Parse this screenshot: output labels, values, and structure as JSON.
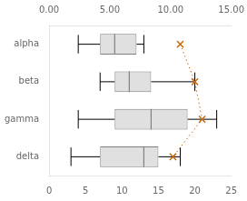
{
  "chart_data": {
    "type": "box",
    "orientation": "horizontal",
    "categories": [
      "alpha",
      "beta",
      "gamma",
      "delta"
    ],
    "boxes": [
      {
        "whisker_low": 4,
        "q1": 7,
        "median": 9,
        "q3": 12,
        "whisker_high": 13,
        "mean": 18
      },
      {
        "whisker_low": 7,
        "q1": 9,
        "median": 11,
        "q3": 14,
        "whisker_high": 20,
        "mean": 20
      },
      {
        "whisker_low": 4,
        "q1": 9,
        "median": 14,
        "q3": 19,
        "whisker_high": 23,
        "mean": 21
      },
      {
        "whisker_low": 3,
        "q1": 7,
        "median": 13,
        "q3": 15,
        "whisker_high": 18,
        "mean": 17
      }
    ],
    "color": "#e0e0e0",
    "mean_line": {
      "color": "#cc6600",
      "marker": "x",
      "line_style": "dotted"
    },
    "xlim": [
      0,
      25
    ],
    "xticks": [
      0,
      5,
      10,
      15,
      20,
      25
    ],
    "x2lim": [
      0.0,
      15.0
    ],
    "x2ticks": [
      {
        "value": 0,
        "label": "0.00"
      },
      {
        "value": 5,
        "label": "5.00"
      },
      {
        "value": 10,
        "label": "10.00"
      },
      {
        "value": 15,
        "label": "15.00"
      }
    ],
    "grid": false
  }
}
